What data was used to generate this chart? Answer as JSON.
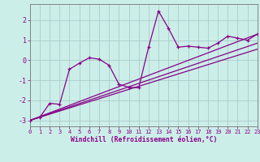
{
  "xlabel": "Windchill (Refroidissement éolien,°C)",
  "background_color": "#cceee8",
  "grid_color": "#aacccc",
  "line_color": "#880088",
  "xlim": [
    0,
    23
  ],
  "ylim": [
    -3.3,
    2.8
  ],
  "yticks": [
    -3,
    -2,
    -1,
    0,
    1,
    2
  ],
  "xticks": [
    0,
    1,
    2,
    3,
    4,
    5,
    6,
    7,
    8,
    9,
    10,
    11,
    12,
    13,
    14,
    15,
    16,
    17,
    18,
    19,
    20,
    21,
    22,
    23
  ],
  "series_main": [
    [
      0,
      -3.0
    ],
    [
      1,
      -2.85
    ],
    [
      2,
      -2.15
    ],
    [
      3,
      -2.2
    ],
    [
      4,
      -0.45
    ],
    [
      5,
      -0.15
    ],
    [
      6,
      0.12
    ],
    [
      7,
      0.05
    ],
    [
      8,
      -0.25
    ],
    [
      9,
      -1.2
    ],
    [
      10,
      -1.35
    ],
    [
      11,
      -1.38
    ],
    [
      12,
      0.65
    ],
    [
      13,
      2.45
    ],
    [
      14,
      1.6
    ],
    [
      15,
      0.65
    ],
    [
      16,
      0.7
    ],
    [
      17,
      0.65
    ],
    [
      18,
      0.6
    ],
    [
      19,
      0.85
    ],
    [
      20,
      1.2
    ],
    [
      21,
      1.1
    ],
    [
      22,
      1.0
    ],
    [
      23,
      1.3
    ]
  ],
  "series_linear1": [
    [
      0,
      -3.0
    ],
    [
      23,
      1.3
    ]
  ],
  "series_linear2": [
    [
      0,
      -3.0
    ],
    [
      23,
      0.85
    ]
  ],
  "series_linear3": [
    [
      0,
      -3.0
    ],
    [
      23,
      0.55
    ]
  ]
}
